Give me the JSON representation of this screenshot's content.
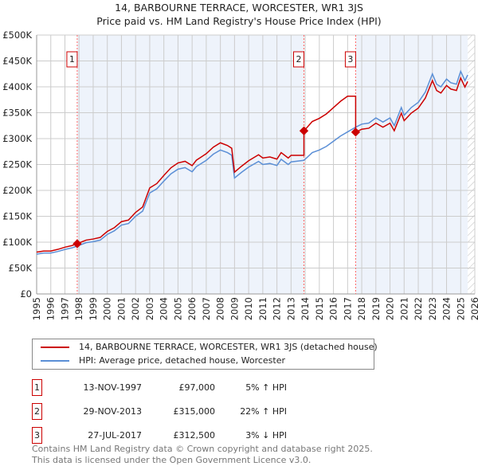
{
  "chart_data": {
    "type": "line",
    "title": "14, BARBOURNE TERRACE, WORCESTER, WR1 3JS",
    "subtitle": "Price paid vs. HM Land Registry's House Price Index (HPI)",
    "xlim": [
      1995,
      2026
    ],
    "ylim": [
      0,
      500000
    ],
    "y_ticks": [
      0,
      50000,
      100000,
      150000,
      200000,
      250000,
      300000,
      350000,
      400000,
      450000,
      500000
    ],
    "y_tick_labels": [
      "£0",
      "£50K",
      "£100K",
      "£150K",
      "£200K",
      "£250K",
      "£300K",
      "£350K",
      "£400K",
      "£450K",
      "£500K"
    ],
    "x_ticks": [
      1995,
      1996,
      1997,
      1998,
      1999,
      2000,
      2001,
      2002,
      2003,
      2004,
      2005,
      2006,
      2007,
      2008,
      2009,
      2010,
      2011,
      2012,
      2013,
      2014,
      2015,
      2016,
      2017,
      2018,
      2019,
      2020,
      2021,
      2022,
      2023,
      2024,
      2025,
      2026
    ],
    "grid": true,
    "forecast_hatch_from": 2025.5,
    "series": [
      {
        "name": "HPI: Average price, detached house, Worcester",
        "color": "#5b8fd6",
        "x": [
          1995,
          1995.5,
          1996,
          1996.5,
          1997,
          1997.5,
          1997.87,
          1998.5,
          1999,
          1999.5,
          2000,
          2000.5,
          2001,
          2001.5,
          2002,
          2002.5,
          2003,
          2003.5,
          2004,
          2004.5,
          2005,
          2005.5,
          2006,
          2006.3,
          2007,
          2007.5,
          2008,
          2008.5,
          2008.8,
          2009,
          2009.5,
          2010,
          2010.7,
          2011,
          2011.5,
          2012,
          2012.3,
          2012.8,
          2013,
          2013.91,
          2014.5,
          2015,
          2015.5,
          2016,
          2016.5,
          2017,
          2017.57,
          2018,
          2018.5,
          2019,
          2019.5,
          2020,
          2020.3,
          2020.8,
          2021,
          2021.5,
          2022,
          2022.5,
          2023,
          2023.3,
          2023.6,
          2024,
          2024.3,
          2024.7,
          2025,
          2025.3,
          2025.5
        ],
        "y": [
          77000,
          79000,
          79000,
          82000,
          86000,
          89000,
          92500,
          99000,
          101000,
          104000,
          115000,
          122000,
          133000,
          136000,
          150000,
          160000,
          195000,
          203000,
          218000,
          232000,
          241000,
          244000,
          236000,
          246000,
          258000,
          270000,
          278000,
          273000,
          268000,
          224000,
          235000,
          245000,
          256000,
          250000,
          252000,
          248000,
          260000,
          250000,
          255000,
          258000,
          273000,
          278000,
          285000,
          295000,
          305000,
          313000,
          322000,
          328000,
          330000,
          340000,
          332000,
          340000,
          325000,
          360000,
          345000,
          360000,
          370000,
          390000,
          425000,
          405000,
          400000,
          415000,
          408000,
          405000,
          430000,
          412000,
          423000
        ]
      },
      {
        "name": "14, BARBOURNE TERRACE, WORCESTER, WR1 3JS (detached house)",
        "color": "#cc0000"
      }
    ],
    "sales": [
      {
        "id": "1",
        "x": 1997.87,
        "date": "13-NOV-1997",
        "price": 97000,
        "price_label": "£97,000",
        "hpi_label": "5% ↑ HPI",
        "ratio": 1.05
      },
      {
        "id": "2",
        "x": 2013.91,
        "date": "29-NOV-2013",
        "price": 315000,
        "price_label": "£315,000",
        "hpi_label": "22% ↑ HPI",
        "ratio": 1.22
      },
      {
        "id": "3",
        "x": 2017.57,
        "date": "27-JUL-2017",
        "price": 312500,
        "price_label": "£312,500",
        "hpi_label": "3% ↓ HPI",
        "ratio": 0.97
      }
    ],
    "colors": {
      "shade": "#eef3fb",
      "grid": "#cccccc",
      "vline": "#ff6666"
    }
  },
  "legend": {
    "red": "14, BARBOURNE TERRACE, WORCESTER, WR1 3JS (detached house)",
    "blue": "HPI: Average price, detached house, Worcester"
  },
  "footer": {
    "line1": "Contains HM Land Registry data © Crown copyright and database right 2025.",
    "line2": "This data is licensed under the Open Government Licence v3.0."
  }
}
